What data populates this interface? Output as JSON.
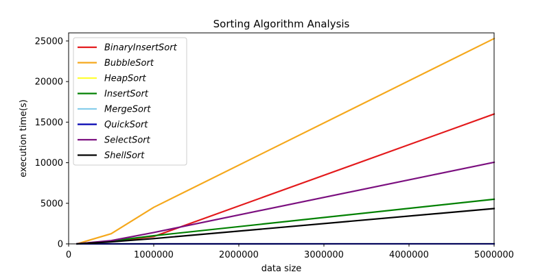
{
  "chart_data": {
    "type": "line",
    "title": "Sorting Algorithm Analysis",
    "xlabel": "data size",
    "ylabel": "execution time(s)",
    "xlim": [
      0,
      5000000
    ],
    "ylim": [
      0,
      26000
    ],
    "xticks": [
      0,
      1000000,
      2000000,
      3000000,
      4000000,
      5000000
    ],
    "yticks": [
      0,
      5000,
      10000,
      15000,
      20000,
      25000
    ],
    "grid": false,
    "legend_position": "top-left",
    "x": [
      100000,
      500000,
      1000000,
      5000000
    ],
    "series": [
      {
        "name": "BinaryInsertSort",
        "color": "#e31a1c",
        "values": [
          5,
          300,
          900,
          16000
        ]
      },
      {
        "name": "BubbleSort",
        "color": "#f5a81c",
        "values": [
          10,
          1250,
          4500,
          25300
        ]
      },
      {
        "name": "HeapSort",
        "color": "#ffff33",
        "values": [
          0.1,
          0.6,
          1.2,
          8
        ]
      },
      {
        "name": "InsertSort",
        "color": "#008000",
        "values": [
          5,
          350,
          1000,
          5500
        ]
      },
      {
        "name": "MergeSort",
        "color": "#87ceeb",
        "values": [
          0.1,
          0.5,
          1,
          7
        ]
      },
      {
        "name": "QuickSort",
        "color": "#0000b0",
        "values": [
          0.05,
          0.3,
          0.7,
          5
        ]
      },
      {
        "name": "SelectSort",
        "color": "#7b0f7f",
        "values": [
          10,
          400,
          1400,
          10050
        ]
      },
      {
        "name": "ShellSort",
        "color": "#000000",
        "values": [
          2,
          250,
          650,
          4350
        ]
      }
    ]
  }
}
